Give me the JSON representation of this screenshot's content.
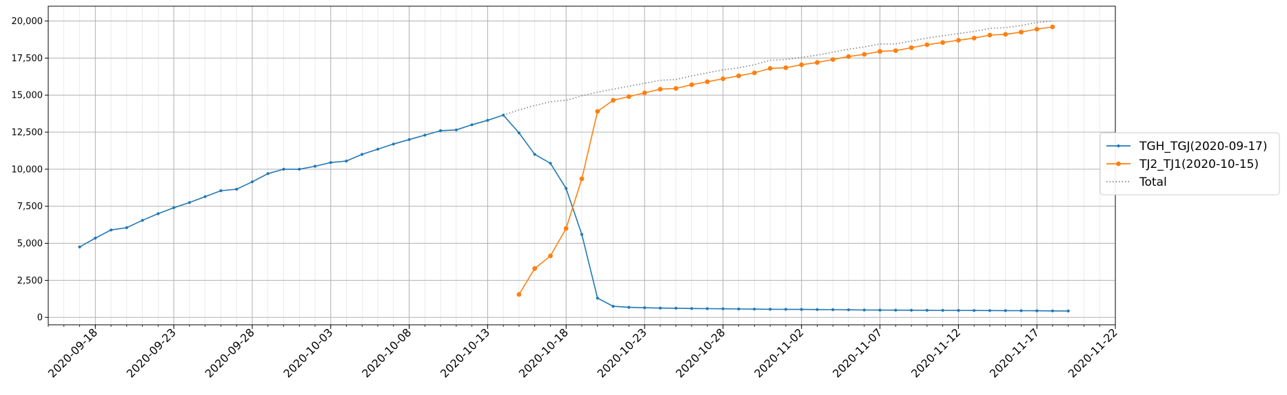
{
  "chart_data": {
    "type": "line",
    "title": "",
    "xlabel": "",
    "ylabel": "",
    "x_start": "2020-09-17",
    "x_end": "2020-11-19",
    "xlim": [
      "2020-09-15",
      "2020-11-22"
    ],
    "ylim": [
      -500,
      21000
    ],
    "y_ticks": [
      0,
      2500,
      5000,
      7500,
      10000,
      12500,
      15000,
      17500,
      20000
    ],
    "y_tick_labels": [
      "0",
      "2,500",
      "5,000",
      "7,500",
      "10,000",
      "12,500",
      "15,000",
      "17,500",
      "20,000"
    ],
    "x_ticks": [
      "2020-09-18",
      "2020-09-23",
      "2020-09-28",
      "2020-10-03",
      "2020-10-08",
      "2020-10-13",
      "2020-10-18",
      "2020-10-23",
      "2020-10-28",
      "2020-11-02",
      "2020-11-07",
      "2020-11-12",
      "2020-11-17",
      "2020-11-22"
    ],
    "grid": true,
    "minor_grid_x": "daily",
    "legend_position": "right, outside plot",
    "series": [
      {
        "name": "TGH_TGJ(2020-09-17)",
        "color": "#1f77b4",
        "line_style": "solid",
        "marker": "dot",
        "start": "2020-09-17",
        "values": [
          4750,
          5350,
          5900,
          6050,
          6550,
          7000,
          7400,
          7750,
          8150,
          8550,
          8650,
          9150,
          9700,
          10000,
          10000,
          10200,
          10450,
          10550,
          11000,
          11350,
          11700,
          12000,
          12300,
          12600,
          12650,
          13000,
          13300,
          13650,
          12450,
          11000,
          10400,
          8700,
          5600,
          1300,
          750,
          680,
          650,
          630,
          620,
          600,
          590,
          580,
          570,
          560,
          550,
          545,
          540,
          530,
          520,
          510,
          500,
          495,
          490,
          485,
          480,
          475,
          470,
          465,
          460,
          455,
          450,
          445,
          440,
          435
        ]
      },
      {
        "name": "TJ2_TJ1(2020-10-15)",
        "color": "#ff7f0e",
        "line_style": "solid",
        "marker": "circle",
        "start": "2020-10-15",
        "values": [
          1550,
          3300,
          4150,
          6000,
          9350,
          13900,
          14650,
          14900,
          15150,
          15400,
          15450,
          15700,
          15900,
          16100,
          16300,
          16500,
          16800,
          16850,
          17050,
          17200,
          17400,
          17600,
          17750,
          17950,
          18000,
          18200,
          18400,
          18550,
          18700,
          18850,
          19050,
          19100,
          19250,
          19450,
          19600
        ]
      },
      {
        "name": "Total",
        "color": "#808080",
        "line_style": "dotted",
        "marker": "none",
        "start": "2020-10-14",
        "values": [
          13650,
          14000,
          14300,
          14550,
          14650,
          14950,
          15200,
          15400,
          15600,
          15800,
          16000,
          16050,
          16300,
          16500,
          16700,
          16850,
          17050,
          17350,
          17400,
          17550,
          17700,
          17900,
          18100,
          18250,
          18450,
          18450,
          18650,
          18850,
          19000,
          19150,
          19300,
          19500,
          19550,
          19700,
          19900,
          20000
        ]
      }
    ]
  }
}
